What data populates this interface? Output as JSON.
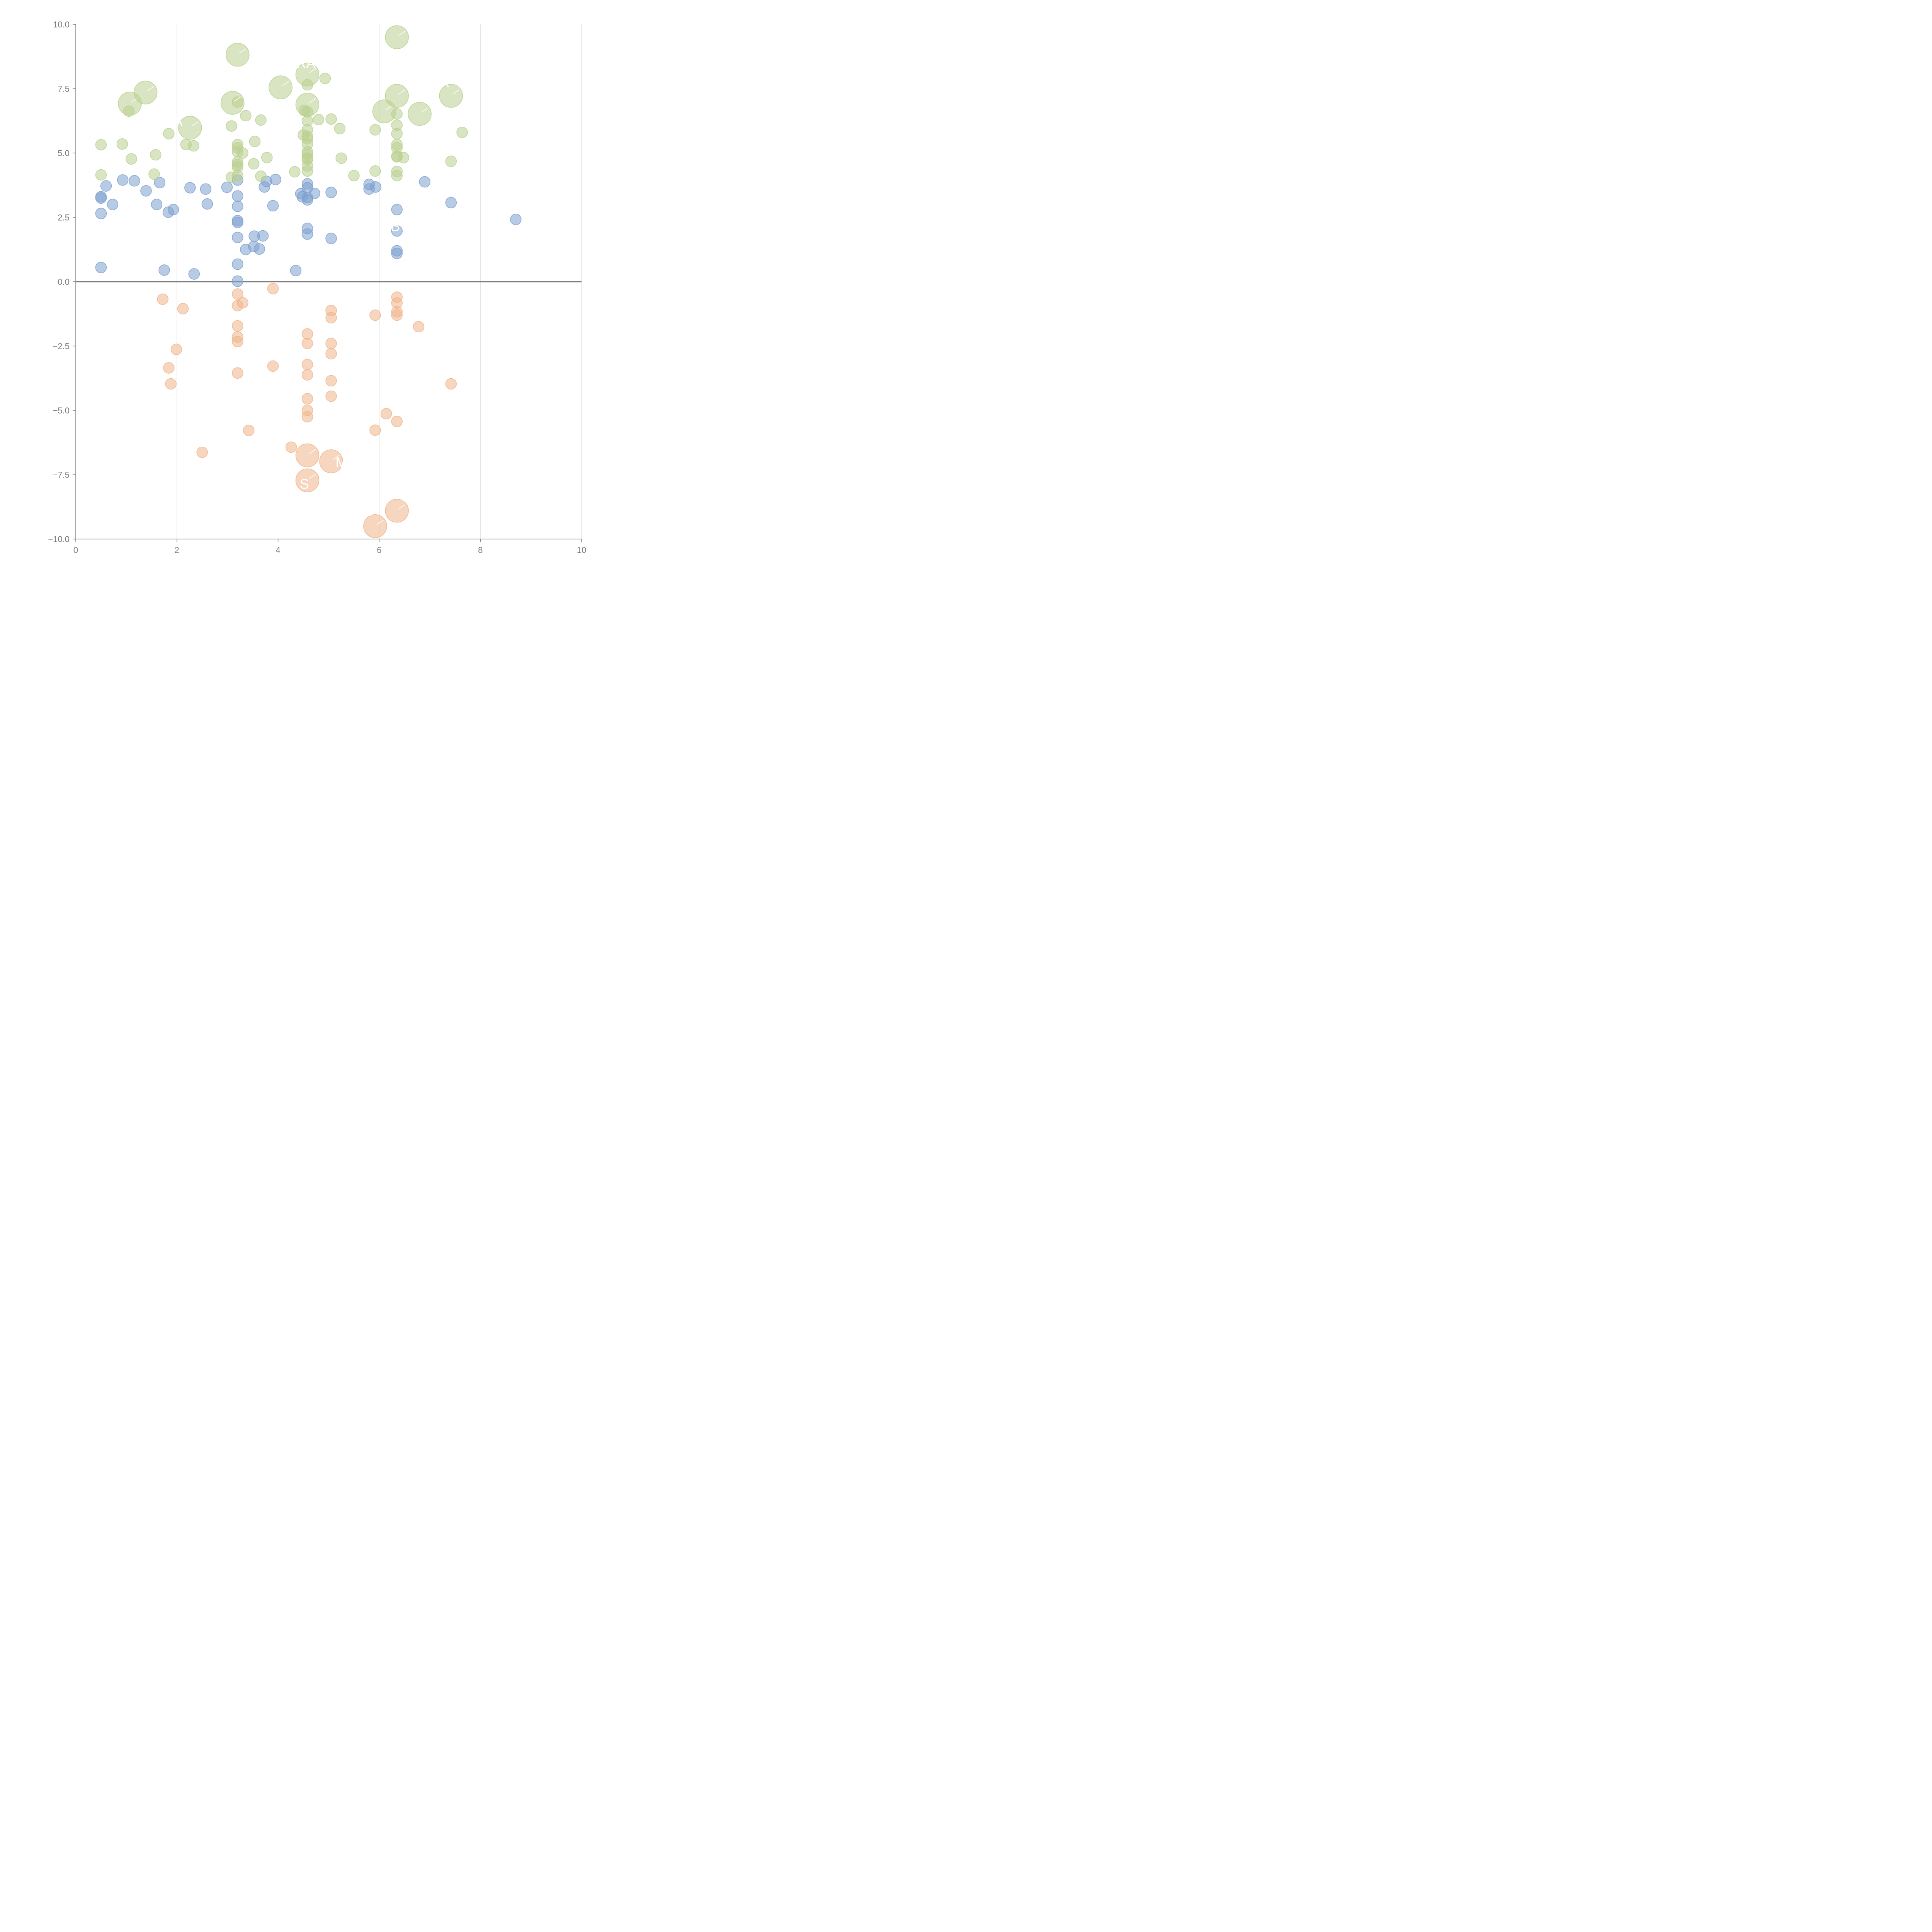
{
  "chart_data": {
    "type": "scatter",
    "title": "",
    "xlabel": "",
    "ylabel": "",
    "xlim": [
      0,
      10
    ],
    "ylim": [
      -10,
      10
    ],
    "x_ticks": [
      0,
      2,
      4,
      6,
      8,
      10
    ],
    "y_ticks": [
      -10,
      -7.5,
      -5,
      -2.5,
      0,
      2.5,
      5,
      7.5,
      10
    ],
    "x_tick_labels": [
      "0",
      "2",
      "4",
      "6",
      "8",
      "10"
    ],
    "y_tick_labels": [
      "−10.0",
      "−7.5",
      "−5.0",
      "−2.5",
      "0.0",
      "2.5",
      "5.0",
      "7.5",
      "10.0"
    ],
    "grid": "vertical",
    "series": [
      {
        "name": "blue",
        "color": "#7da0cf",
        "points": [
          [
            0.5,
            3.3
          ],
          [
            0.5,
            3.25
          ],
          [
            0.5,
            2.65
          ],
          [
            0.5,
            0.55
          ],
          [
            0.6,
            3.72
          ],
          [
            0.73,
            3.0
          ],
          [
            0.93,
            3.95
          ],
          [
            1.16,
            3.92
          ],
          [
            1.39,
            3.53
          ],
          [
            1.6,
            3.0
          ],
          [
            1.66,
            3.85
          ],
          [
            1.75,
            0.45
          ],
          [
            1.83,
            2.7
          ],
          [
            1.93,
            2.8
          ],
          [
            2.26,
            3.65
          ],
          [
            2.34,
            0.3
          ],
          [
            2.57,
            3.6
          ],
          [
            2.6,
            3.02
          ],
          [
            2.99,
            3.67
          ],
          [
            3.2,
            3.95
          ],
          [
            3.2,
            3.33
          ],
          [
            3.2,
            2.93
          ],
          [
            3.2,
            2.37
          ],
          [
            3.2,
            2.3
          ],
          [
            3.2,
            1.72
          ],
          [
            3.2,
            0.68
          ],
          [
            3.2,
            0.02
          ],
          [
            3.36,
            1.25
          ],
          [
            3.52,
            1.37
          ],
          [
            3.53,
            1.77
          ],
          [
            3.63,
            1.27
          ],
          [
            3.7,
            1.78
          ],
          [
            3.73,
            3.68
          ],
          [
            3.77,
            3.9
          ],
          [
            3.9,
            2.95
          ],
          [
            3.95,
            3.97
          ],
          [
            4.35,
            0.43
          ],
          [
            4.45,
            3.42
          ],
          [
            4.48,
            3.3
          ],
          [
            4.58,
            3.8
          ],
          [
            4.58,
            3.65
          ],
          [
            4.58,
            3.27
          ],
          [
            4.58,
            3.18
          ],
          [
            4.58,
            2.07
          ],
          [
            4.58,
            1.85
          ],
          [
            4.72,
            3.43
          ],
          [
            5.05,
            3.47
          ],
          [
            5.05,
            1.68
          ],
          [
            5.8,
            3.78
          ],
          [
            5.8,
            3.6
          ],
          [
            5.93,
            3.68
          ],
          [
            6.35,
            2.8
          ],
          [
            6.35,
            1.97
          ],
          [
            6.35,
            1.2
          ],
          [
            6.35,
            1.1
          ],
          [
            6.9,
            3.88
          ],
          [
            7.42,
            3.07
          ],
          [
            8.7,
            2.42
          ]
        ],
        "bubbles": []
      },
      {
        "name": "green",
        "color": "#b9d08f",
        "points": [
          [
            0.5,
            5.32
          ],
          [
            0.5,
            4.15
          ],
          [
            0.92,
            5.35
          ],
          [
            1.05,
            6.63
          ],
          [
            1.1,
            4.77
          ],
          [
            1.55,
            4.18
          ],
          [
            1.58,
            4.93
          ],
          [
            1.84,
            5.75
          ],
          [
            2.18,
            5.33
          ],
          [
            2.33,
            5.28
          ],
          [
            3.08,
            6.05
          ],
          [
            3.08,
            4.06
          ],
          [
            3.2,
            6.98
          ],
          [
            3.2,
            5.33
          ],
          [
            3.2,
            5.2
          ],
          [
            3.2,
            5.05
          ],
          [
            3.2,
            4.65
          ],
          [
            3.2,
            4.55
          ],
          [
            3.2,
            4.45
          ],
          [
            3.2,
            4.12
          ],
          [
            3.3,
            5.0
          ],
          [
            3.36,
            6.45
          ],
          [
            3.52,
            4.58
          ],
          [
            3.54,
            5.45
          ],
          [
            3.66,
            6.28
          ],
          [
            3.66,
            4.1
          ],
          [
            3.78,
            4.82
          ],
          [
            4.33,
            4.27
          ],
          [
            4.5,
            5.7
          ],
          [
            4.52,
            6.65
          ],
          [
            4.58,
            7.65
          ],
          [
            4.58,
            6.6
          ],
          [
            4.58,
            6.25
          ],
          [
            4.58,
            5.9
          ],
          [
            4.58,
            5.65
          ],
          [
            4.58,
            5.55
          ],
          [
            4.58,
            5.35
          ],
          [
            4.58,
            5.05
          ],
          [
            4.58,
            4.95
          ],
          [
            4.58,
            4.8
          ],
          [
            4.58,
            4.75
          ],
          [
            4.58,
            4.5
          ],
          [
            4.58,
            4.3
          ],
          [
            4.8,
            6.3
          ],
          [
            4.93,
            7.9
          ],
          [
            5.05,
            6.32
          ],
          [
            5.22,
            5.95
          ],
          [
            5.25,
            4.8
          ],
          [
            5.5,
            4.12
          ],
          [
            5.92,
            5.9
          ],
          [
            5.92,
            4.3
          ],
          [
            6.35,
            6.52
          ],
          [
            6.35,
            6.08
          ],
          [
            6.35,
            5.75
          ],
          [
            6.35,
            5.33
          ],
          [
            6.35,
            5.2
          ],
          [
            6.35,
            4.88
          ],
          [
            6.35,
            4.85
          ],
          [
            6.35,
            4.28
          ],
          [
            6.35,
            4.12
          ],
          [
            6.48,
            4.82
          ],
          [
            7.42,
            4.68
          ],
          [
            7.64,
            5.8
          ]
        ],
        "bubbles": [
          [
            1.07,
            6.92
          ],
          [
            1.38,
            7.35
          ],
          [
            2.26,
            5.98
          ],
          [
            3.1,
            6.95
          ],
          [
            3.2,
            8.82
          ],
          [
            4.05,
            7.55
          ],
          [
            4.58,
            8.05
          ],
          [
            4.58,
            6.88
          ],
          [
            6.1,
            6.62
          ],
          [
            6.35,
            9.5
          ],
          [
            6.35,
            7.22
          ],
          [
            6.8,
            6.52
          ],
          [
            7.42,
            7.22
          ]
        ]
      },
      {
        "name": "orange",
        "color": "#f0b58b",
        "points": [
          [
            1.72,
            -0.68
          ],
          [
            1.84,
            -3.35
          ],
          [
            1.88,
            -3.97
          ],
          [
            1.99,
            -2.63
          ],
          [
            2.12,
            -1.05
          ],
          [
            2.5,
            -6.63
          ],
          [
            3.2,
            -0.48
          ],
          [
            3.2,
            -0.93
          ],
          [
            3.2,
            -1.72
          ],
          [
            3.2,
            -2.15
          ],
          [
            3.2,
            -2.33
          ],
          [
            3.2,
            -3.55
          ],
          [
            3.3,
            -0.82
          ],
          [
            3.42,
            -5.78
          ],
          [
            3.9,
            -0.27
          ],
          [
            3.9,
            -3.28
          ],
          [
            4.26,
            -6.43
          ],
          [
            4.58,
            -2.03
          ],
          [
            4.58,
            -2.4
          ],
          [
            4.58,
            -3.22
          ],
          [
            4.58,
            -3.62
          ],
          [
            4.58,
            -4.55
          ],
          [
            4.58,
            -5.0
          ],
          [
            4.58,
            -5.25
          ],
          [
            5.05,
            -1.12
          ],
          [
            5.05,
            -1.4
          ],
          [
            5.05,
            -2.4
          ],
          [
            5.05,
            -2.8
          ],
          [
            5.05,
            -3.85
          ],
          [
            5.05,
            -4.45
          ],
          [
            5.92,
            -1.3
          ],
          [
            5.92,
            -5.77
          ],
          [
            6.14,
            -5.13
          ],
          [
            6.35,
            -0.6
          ],
          [
            6.35,
            -0.83
          ],
          [
            6.35,
            -1.17
          ],
          [
            6.35,
            -1.3
          ],
          [
            6.35,
            -5.43
          ],
          [
            6.78,
            -1.75
          ],
          [
            7.42,
            -3.97
          ]
        ],
        "bubbles": [
          [
            4.58,
            -6.75
          ],
          [
            4.58,
            -7.72
          ],
          [
            5.05,
            -6.98
          ],
          [
            5.92,
            -9.5
          ],
          [
            6.35,
            -8.9
          ]
        ]
      }
    ],
    "annotations": [
      {
        "text": "RA",
        "x": 4.55,
        "y": 8.3
      },
      {
        "text": "A",
        "x": 2.02,
        "y": 6.05
      },
      {
        "text": "R",
        "x": 7.3,
        "y": 7.55
      },
      {
        "text": "B",
        "x": 6.32,
        "y": 1.97
      },
      {
        "text": "M",
        "x": 5.25,
        "y": -7.2
      },
      {
        "text": "S",
        "x": 4.52,
        "y": -8.05
      },
      {
        "text": "C",
        "x": 6.52,
        "y": -8.55
      },
      {
        "text": "R",
        "x": 5.75,
        "y": -9.1
      }
    ]
  }
}
